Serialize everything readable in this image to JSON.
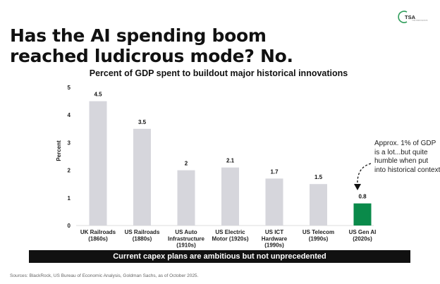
{
  "logo": {
    "text": "TSA",
    "subtext": "TOTAL STRATEGY ADVISORS",
    "ring_color": "#2e9d5a"
  },
  "headline": {
    "line1": "Has the AI spending boom",
    "line2": "reached ludicrous mode? No."
  },
  "callout": {
    "text": "Approx. 1% of GDP is a lot...but quite humble when put into historical context"
  },
  "banner": {
    "text": "Current capex plans are ambitious but not unprecedented"
  },
  "sources": {
    "text": "Sources: BlackRock, US Bureau of Economic Analysis, Goldman Sachs, as of October 2025."
  },
  "chart_data": {
    "type": "bar",
    "title": "Percent of GDP spent to buildout major historical innovations",
    "ylabel": "Percent",
    "xlabel": "",
    "ylim": [
      0,
      5
    ],
    "yticks": [
      0,
      1,
      2,
      3,
      4,
      5
    ],
    "categories": [
      [
        "UK Railroads",
        "(1860s)"
      ],
      [
        "US Railroads",
        "(1880s)"
      ],
      [
        "US Auto",
        "Infrastructure",
        "(1910s)"
      ],
      [
        "US Electric",
        "Motor (1920s)"
      ],
      [
        "US ICT",
        "Hardware",
        "(1990s)"
      ],
      [
        "US Telecom",
        "(1990s)"
      ],
      [
        "US Gen AI",
        "(2020s)"
      ]
    ],
    "values": [
      4.5,
      3.5,
      2,
      2.1,
      1.7,
      1.5,
      0.8
    ],
    "value_labels": [
      "4.5",
      "3.5",
      "2",
      "2.1",
      "1.7",
      "1.5",
      "0.8"
    ],
    "bar_colors": [
      "#d6d6dc",
      "#d6d6dc",
      "#d6d6dc",
      "#d6d6dc",
      "#d6d6dc",
      "#d6d6dc",
      "#0a8a4a"
    ],
    "grid": false,
    "legend": "none"
  }
}
